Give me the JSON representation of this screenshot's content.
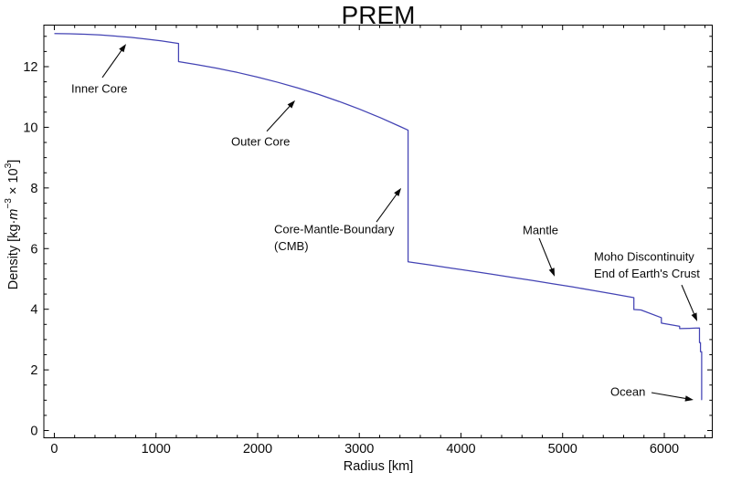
{
  "chart_data": {
    "type": "line",
    "title": "PREM",
    "xlabel": "Radius [km]",
    "ylabel": "Density [kg·m⁻³ × 10³]",
    "ylabel_parts": [
      {
        "text": "Density [kg·"
      },
      {
        "text": "m",
        "italic": true
      },
      {
        "text": "−3",
        "sup": true
      },
      {
        "text": " × 10"
      },
      {
        "text": "3",
        "sup": true
      },
      {
        "text": "]"
      }
    ],
    "xlim": [
      -103,
      6472
    ],
    "ylim": [
      -0.24,
      13.37
    ],
    "grid": false,
    "frame_ticks_all_sides": true,
    "x_major_ticks": [
      0,
      1000,
      2000,
      3000,
      4000,
      5000,
      6000
    ],
    "x_minor_step": 200,
    "y_major_ticks": [
      0,
      2,
      4,
      6,
      8,
      10,
      12
    ],
    "y_minor_step": 0.5,
    "line_color": "#4343b4",
    "frame_color": "#000000",
    "series": [
      {
        "name": "PREM density profile",
        "points": [
          [
            0,
            13.089
          ],
          [
            150,
            13.084
          ],
          [
            300,
            13.069
          ],
          [
            450,
            13.044
          ],
          [
            600,
            13.01
          ],
          [
            750,
            12.966
          ],
          [
            900,
            12.912
          ],
          [
            1050,
            12.848
          ],
          [
            1221.5,
            12.764
          ],
          [
            1221.5,
            12.166
          ],
          [
            1400,
            12.069
          ],
          [
            1600,
            11.947
          ],
          [
            1800,
            11.809
          ],
          [
            2000,
            11.655
          ],
          [
            2200,
            11.483
          ],
          [
            2400,
            11.293
          ],
          [
            2600,
            11.084
          ],
          [
            2800,
            10.854
          ],
          [
            3000,
            10.602
          ],
          [
            3200,
            10.327
          ],
          [
            3400,
            10.029
          ],
          [
            3480,
            9.904
          ],
          [
            3480,
            5.566
          ],
          [
            3700,
            5.457
          ],
          [
            3900,
            5.357
          ],
          [
            4100,
            5.257
          ],
          [
            4300,
            5.157
          ],
          [
            4500,
            5.054
          ],
          [
            4700,
            4.95
          ],
          [
            4900,
            4.843
          ],
          [
            5100,
            4.733
          ],
          [
            5300,
            4.619
          ],
          [
            5500,
            4.501
          ],
          [
            5701,
            4.381
          ],
          [
            5701,
            3.992
          ],
          [
            5771,
            3.976
          ],
          [
            5971,
            3.724
          ],
          [
            5971,
            3.543
          ],
          [
            6151,
            3.436
          ],
          [
            6151,
            3.36
          ],
          [
            6250,
            3.37
          ],
          [
            6346.6,
            3.381
          ],
          [
            6346.6,
            2.9
          ],
          [
            6356,
            2.9
          ],
          [
            6356,
            2.6
          ],
          [
            6368,
            2.6
          ],
          [
            6368,
            1.02
          ],
          [
            6371,
            1.02
          ]
        ]
      }
    ],
    "annotations": [
      {
        "id": "inner-core",
        "lines": [
          "Inner Core"
        ],
        "text_at": [
          167,
          11.28
        ],
        "arrow_from": [
          472,
          11.64
        ],
        "arrow_to": [
          706,
          12.75
        ]
      },
      {
        "id": "outer-core",
        "lines": [
          "Outer Core"
        ],
        "text_at": [
          1740,
          9.53
        ],
        "arrow_from": [
          2090,
          9.87
        ],
        "arrow_to": [
          2369,
          10.89
        ]
      },
      {
        "id": "core-mantle-boundary",
        "lines": [
          "Core-Mantle-Boundary",
          "(CMB)"
        ],
        "text_at": [
          2162,
          6.64
        ],
        "arrow_from": [
          3169,
          6.88
        ],
        "arrow_to": [
          3412,
          8.0
        ]
      },
      {
        "id": "mantle",
        "lines": [
          "Mantle"
        ],
        "text_at": [
          4607,
          6.61
        ],
        "arrow_from": [
          4769,
          6.34
        ],
        "arrow_to": [
          4922,
          5.08
        ]
      },
      {
        "id": "moho-discontinuity",
        "lines": [
          "Moho Discontinuity",
          "End of Earth's Crust"
        ],
        "text_at": [
          5308,
          5.74
        ],
        "arrow_from": [
          6171,
          4.8
        ],
        "arrow_to": [
          6324,
          3.6
        ]
      },
      {
        "id": "ocean",
        "lines": [
          "Ocean"
        ],
        "text_at": [
          5470,
          1.28
        ],
        "arrow_from": [
          5874,
          1.25
        ],
        "arrow_to": [
          6287,
          1.01
        ]
      }
    ]
  }
}
